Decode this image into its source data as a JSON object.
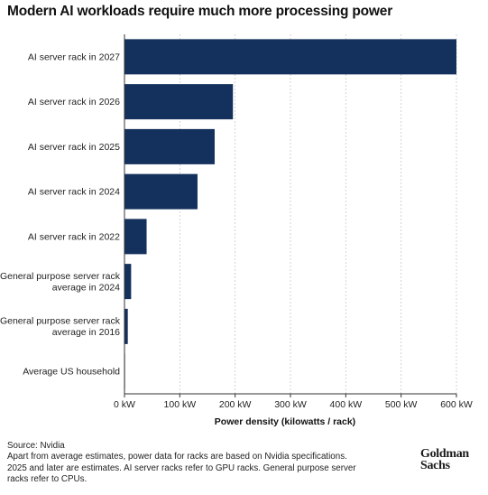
{
  "chart_data": {
    "type": "bar",
    "orientation": "horizontal",
    "title": "Modern AI workloads require much more processing power",
    "categories": [
      "AI server rack in 2027",
      "AI server rack in 2026",
      "AI server rack in 2025",
      "AI server rack in 2024",
      "AI server rack in 2022",
      "General purpose server rack average in 2024",
      "General purpose server rack average in 2016",
      "Average US household"
    ],
    "category_lines": [
      [
        "AI server rack in 2027"
      ],
      [
        "AI server rack in 2026"
      ],
      [
        "AI server rack in 2025"
      ],
      [
        "AI server rack in 2024"
      ],
      [
        "AI server rack in 2022"
      ],
      [
        "General purpose server rack",
        "average in 2024"
      ],
      [
        "General purpose server rack",
        "average in 2016"
      ],
      [
        "Average US household"
      ]
    ],
    "values": [
      600,
      196,
      163,
      132,
      40,
      12,
      6,
      1
    ],
    "xlabel": "Power density (kilowatts / rack)",
    "xlim": [
      0,
      600
    ],
    "xticks": [
      0,
      100,
      200,
      300,
      400,
      500,
      600
    ],
    "xtick_labels": [
      "0 kW",
      "100 kW",
      "200 kW",
      "300 kW",
      "400 kW",
      "500 kW",
      "600 kW"
    ],
    "grid": "vertical dashed",
    "bar_color": "#14305c"
  },
  "footer": {
    "source": "Source: Nvidia",
    "note": "Apart from average estimates, power data for racks are based on Nvidia specifications. 2025 and later are estimates. AI server racks refer to GPU racks. General purpose server racks refer to CPUs."
  },
  "logo": {
    "line1": "Goldman",
    "line2": "Sachs"
  }
}
